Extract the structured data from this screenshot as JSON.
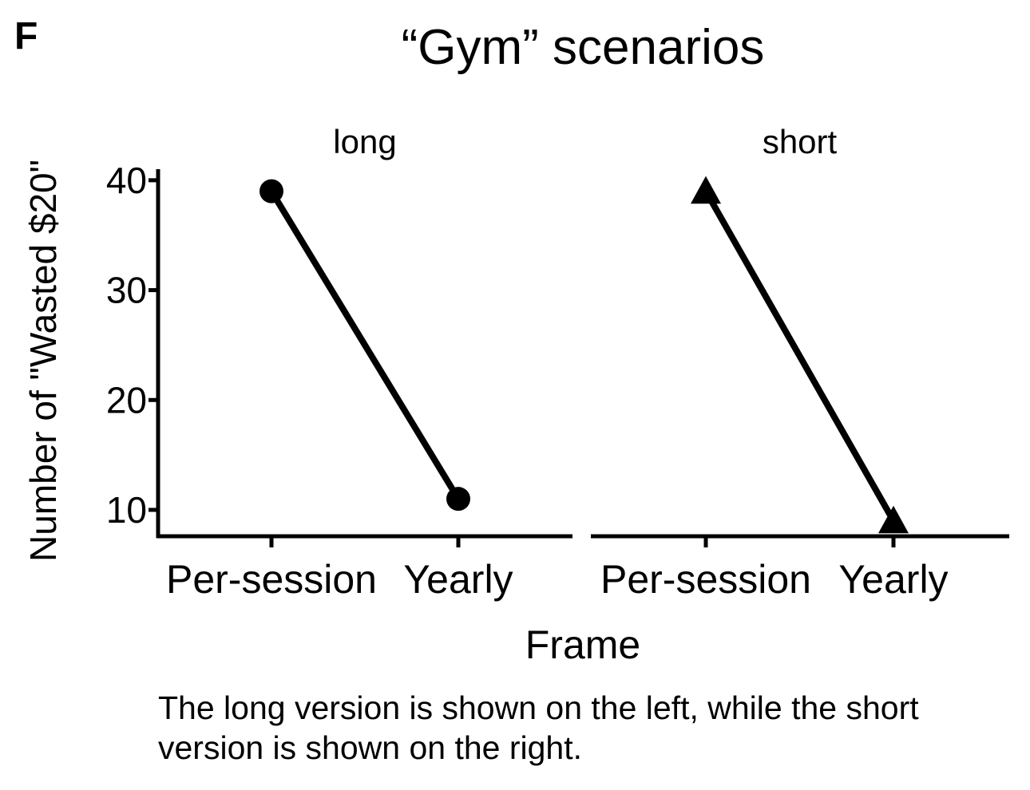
{
  "panel_label": "F",
  "caption": "The long version is shown on the left, while the short version is shown on the right.",
  "chart_data": {
    "type": "line",
    "title": "“Gym” scenarios",
    "xlabel": "Frame",
    "ylabel": "Number of \"Wasted $20\"",
    "ylim": [
      7.6,
      40.5
    ],
    "yticks": [
      10,
      20,
      30,
      40
    ],
    "categories": [
      "Per-session",
      "Yearly"
    ],
    "grid": false,
    "facets": [
      {
        "name": "long",
        "marker": "circle",
        "categories": [
          "Per-session",
          "Yearly"
        ],
        "values": [
          39,
          11
        ]
      },
      {
        "name": "short",
        "marker": "triangle",
        "categories": [
          "Per-session",
          "Yearly"
        ],
        "values": [
          39,
          9
        ]
      }
    ],
    "colors": {
      "line": "#000000",
      "marker": "#000000"
    }
  }
}
